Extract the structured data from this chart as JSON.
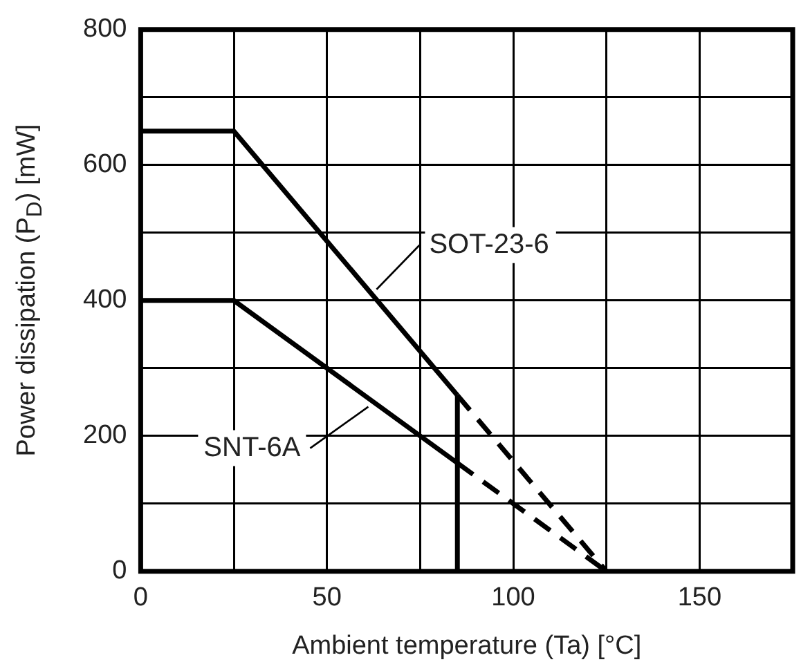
{
  "chart_data": {
    "type": "line",
    "xlabel": "Ambient temperature (Ta) [°C]",
    "ylabel": "Power dissipation (P$_{D}$) [mW]",
    "xlim": [
      0,
      175
    ],
    "xticks": [
      0,
      {
        "value": 25,
        "label": null
      },
      50,
      {
        "value": 75,
        "label": null
      },
      100,
      {
        "value": 125,
        "label": null
      },
      150
    ],
    "ylim": [
      0,
      800
    ],
    "yticks": [
      0,
      {
        "value": 100,
        "label": null
      },
      200,
      {
        "value": 300,
        "label": null
      },
      400,
      {
        "value": 500,
        "label": null
      },
      600,
      {
        "value": 700,
        "label": null
      },
      800
    ],
    "grid": true,
    "legend": false,
    "marker": "none",
    "series": [
      {
        "name": "SOT-23-6",
        "color": "#000000",
        "x": [
          0,
          25,
          85
        ],
        "values": [
          650,
          650,
          260
        ]
      },
      {
        "color": "#000000",
        "x": [
          85,
          125
        ],
        "values": [
          260,
          0
        ],
        "line_style": "dashed"
      },
      {
        "name": "SNT-6A",
        "color": "#000000",
        "x": [
          0,
          25,
          85
        ],
        "values": [
          400,
          400,
          160
        ]
      },
      {
        "color": "#000000",
        "x": [
          85,
          125
        ],
        "values": [
          160,
          0
        ],
        "line_style": "dashed"
      },
      {
        "color": "#000000",
        "x": [
          85,
          85
        ],
        "values": [
          0,
          260
        ]
      }
    ]
  }
}
